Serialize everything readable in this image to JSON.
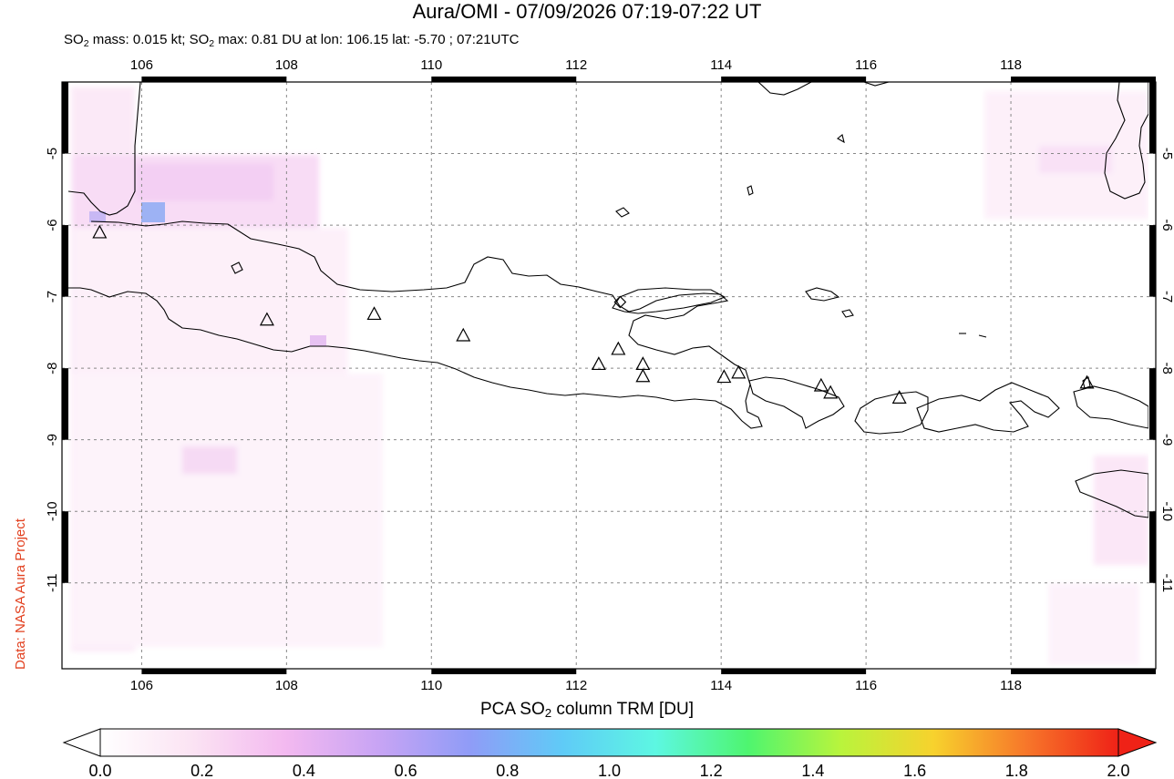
{
  "header": {
    "title": "Aura/OMI - 07/09/2026 07:19-07:22 UT",
    "subtitle_a": "SO",
    "subtitle_sub": "2",
    "subtitle_b": " mass: 0.015 kt; SO",
    "subtitle_c": " max: 0.81 DU at lon: 106.15 lat: -5.70 ; 07:21UTC"
  },
  "credit": "Data: NASA Aura Project",
  "map": {
    "lon_range": [
      104.9,
      120.0
    ],
    "lat_range": [
      -12.2,
      -4.0
    ],
    "lon_ticks": [
      106,
      108,
      110,
      112,
      114,
      116,
      118
    ],
    "lat_ticks": [
      -5,
      -6,
      -7,
      -8,
      -9,
      -10,
      -11
    ],
    "lon_labels": [
      "106",
      "108",
      "110",
      "112",
      "114",
      "116",
      "118"
    ],
    "lat_labels": [
      "-5",
      "-6",
      "-7",
      "-8",
      "-9",
      "-10",
      "-11"
    ],
    "volcanoes": [
      {
        "lon": 105.42,
        "lat": -6.1
      },
      {
        "lon": 107.73,
        "lat": -7.32
      },
      {
        "lon": 109.21,
        "lat": -7.24
      },
      {
        "lon": 110.44,
        "lat": -7.54
      },
      {
        "lon": 112.31,
        "lat": -7.94
      },
      {
        "lon": 112.58,
        "lat": -7.73
      },
      {
        "lon": 112.92,
        "lat": -7.94
      },
      {
        "lon": 112.92,
        "lat": -8.11
      },
      {
        "lon": 114.04,
        "lat": -8.12
      },
      {
        "lon": 114.24,
        "lat": -8.06
      },
      {
        "lon": 115.38,
        "lat": -8.24
      },
      {
        "lon": 115.51,
        "lat": -8.34
      },
      {
        "lon": 116.46,
        "lat": -8.41
      },
      {
        "lon": 119.05,
        "lat": -8.2
      }
    ],
    "so2_max_marker": {
      "lon": 106.15,
      "lat": -5.7
    }
  },
  "colorbar": {
    "title_a": "PCA SO",
    "title_sub": "2",
    "title_b": " column TRM [DU]",
    "labels": [
      "0.0",
      "0.2",
      "0.4",
      "0.6",
      "0.8",
      "1.0",
      "1.2",
      "1.4",
      "1.6",
      "1.8",
      "2.0"
    ],
    "colors": [
      "#ffffff",
      "#fbe3f3",
      "#f3b9f0",
      "#c8a4f4",
      "#8f9cf7",
      "#5fcbf7",
      "#5df7e2",
      "#4ef56f",
      "#b9f43c",
      "#f7d22d",
      "#f7772a",
      "#ef2217"
    ]
  }
}
